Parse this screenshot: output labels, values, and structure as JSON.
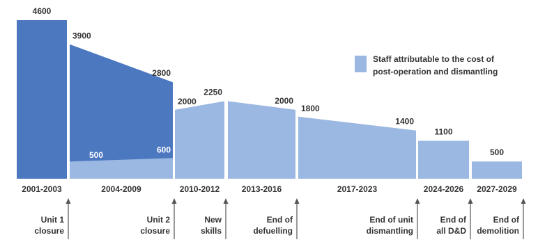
{
  "chart_data": {
    "type": "area",
    "title": "",
    "xlabel": "",
    "ylabel": "",
    "ylim": [
      0,
      4700
    ],
    "grid": false,
    "legend": {
      "position": "top-right",
      "label_lines": [
        "Staff attributable to the cost of",
        "post-operation and dismantling"
      ]
    },
    "colors": {
      "operating": "#4c78c0",
      "post_operation": "#9bb8e2",
      "divider": "#ffffff",
      "text": "#333333",
      "arrow": "#555555"
    },
    "periods": [
      {
        "label": "2001-2003",
        "start": 2001,
        "end": 2004
      },
      {
        "label": "2004-2009",
        "start": 2004,
        "end": 2010
      },
      {
        "label": "2010-2012",
        "start": 2010,
        "end": 2013
      },
      {
        "label": "2013-2016",
        "start": 2013,
        "end": 2017
      },
      {
        "label": "2017-2023",
        "start": 2017,
        "end": 2024
      },
      {
        "label": "2024-2026",
        "start": 2024,
        "end": 2027
      },
      {
        "label": "2027-2029",
        "start": 2027,
        "end": 2030
      }
    ],
    "series": [
      {
        "key": "operating",
        "segments": [
          {
            "period": 0,
            "start_value": 4600,
            "end_value": 4600,
            "labels": [
              "4600"
            ]
          },
          {
            "period": 1,
            "start_value": 3900,
            "end_value": 2800,
            "labels": [
              "3900",
              "2800"
            ]
          }
        ]
      },
      {
        "key": "post_operation",
        "name": "Staff attributable to the cost of post-operation and dismantling",
        "segments": [
          {
            "period": 1,
            "start_value": 500,
            "end_value": 600,
            "labels": [
              "500",
              "600"
            ],
            "labels_inside": true
          },
          {
            "period": 2,
            "start_value": 2000,
            "end_value": 2250,
            "labels": [
              "2000",
              "2250"
            ]
          },
          {
            "period": 3,
            "start_value": 2250,
            "end_value": 2000,
            "labels": [
              "",
              "2000"
            ]
          },
          {
            "period": 4,
            "start_value": 1800,
            "end_value": 1400,
            "labels": [
              "1800",
              "1400"
            ]
          },
          {
            "period": 5,
            "start_value": 1100,
            "end_value": 1100,
            "labels": [
              "1100"
            ]
          },
          {
            "period": 6,
            "start_value": 500,
            "end_value": 500,
            "labels": [
              "500"
            ]
          }
        ]
      }
    ],
    "events": [
      {
        "at_period_end": 0,
        "lines": [
          "Unit 1",
          "closure"
        ]
      },
      {
        "at_period_end": 1,
        "lines": [
          "Unit 2",
          "closure"
        ]
      },
      {
        "at_period_end": 2,
        "lines": [
          "New",
          "skills"
        ]
      },
      {
        "at_period_end": 3,
        "lines": [
          "End of",
          "defuelling"
        ]
      },
      {
        "at_period_end": 4,
        "lines": [
          "End of unit",
          "dismantling"
        ]
      },
      {
        "at_period_end": 5,
        "lines": [
          "End of",
          "all D&D"
        ]
      },
      {
        "at_period_end": 6,
        "lines": [
          "End of",
          "demolition"
        ]
      }
    ]
  }
}
